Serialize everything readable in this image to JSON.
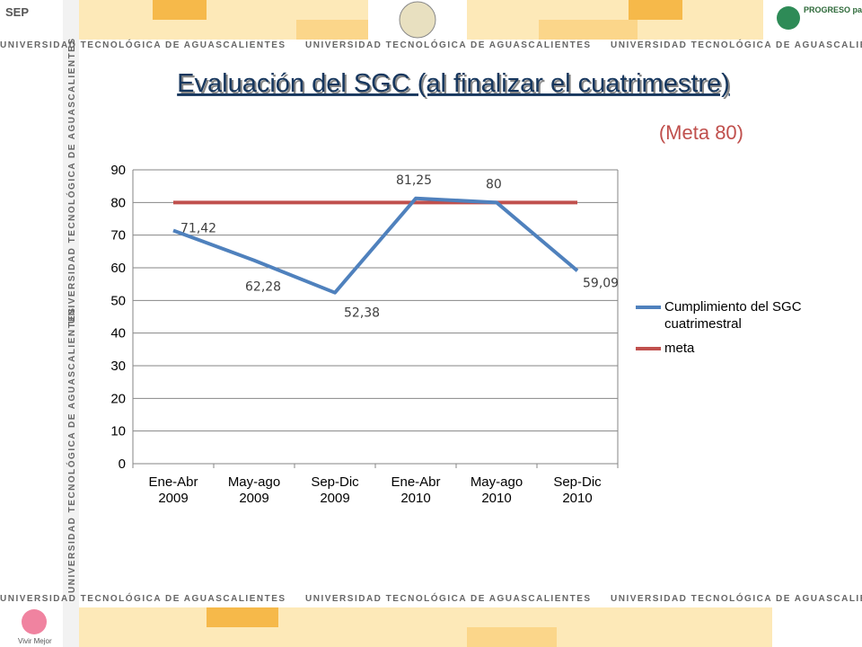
{
  "banner": {
    "text": "UNIVERSIDAD TECNOLÓGICA DE AGUASCALIENTES",
    "sep": "SEP",
    "progreso": "PROGRESO para todos",
    "vivir": "Vivir Mejor"
  },
  "chart_data": {
    "type": "line",
    "title": "Evaluación del SGC (al finalizar el cuatrimestre)",
    "subtitle": "(Meta 80)",
    "categories": [
      "Ene-Abr 2009",
      "May-ago 2009",
      "Sep-Dic 2009",
      "Ene-Abr 2010",
      "May-ago 2010",
      "Sep-Dic 2010"
    ],
    "series": [
      {
        "name": "Cumplimiento del SGC cuatrimestral",
        "color": "#4f81bd",
        "values": [
          71.42,
          62.28,
          52.38,
          81.25,
          80,
          59.09
        ],
        "value_labels": [
          "71,42",
          "62,28",
          "52,38",
          "81,25",
          "80",
          "59,09"
        ]
      },
      {
        "name": "meta",
        "color": "#c0504d",
        "values": [
          80,
          80,
          80,
          80,
          80,
          80
        ]
      }
    ],
    "ylim": [
      0,
      90
    ],
    "yticks": [
      0,
      10,
      20,
      30,
      40,
      50,
      60,
      70,
      80,
      90
    ],
    "grid": true,
    "legend": "right"
  }
}
